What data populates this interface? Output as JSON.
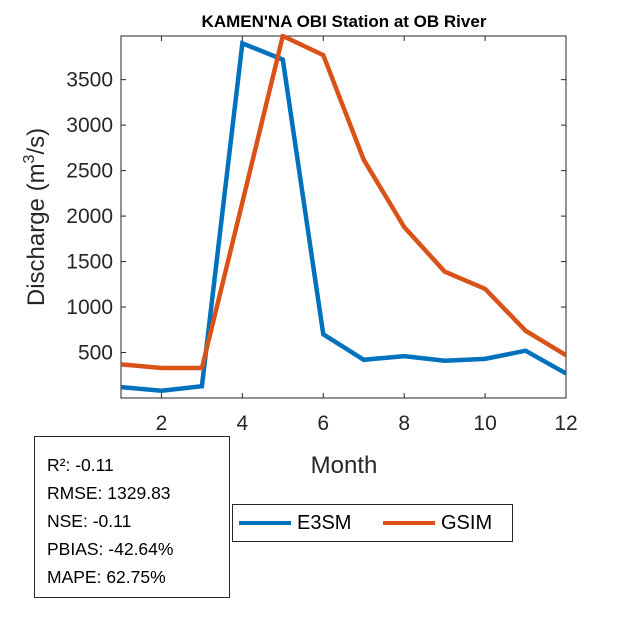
{
  "chart_data": {
    "type": "line",
    "title": "KAMEN'NA OBI  Station at  OB  River",
    "xlabel": "Month",
    "ylabel_main": "Discharge (m",
    "ylabel_sup": "3",
    "ylabel_tail": "/s)",
    "xlim": [
      1,
      12
    ],
    "ylim": [
      0,
      3980
    ],
    "xticks": [
      2,
      4,
      6,
      8,
      10,
      12
    ],
    "yticks": [
      500,
      1000,
      1500,
      2000,
      2500,
      3000,
      3500
    ],
    "x": [
      1,
      2,
      3,
      4,
      5,
      6,
      7,
      8,
      9,
      10,
      11,
      12
    ],
    "series": [
      {
        "name": "E3SM",
        "color": "#0072BD",
        "values": [
          120,
          80,
          130,
          3900,
          3720,
          700,
          420,
          460,
          410,
          430,
          520,
          270
        ]
      },
      {
        "name": "GSIM",
        "color": "#D95319",
        "values": [
          370,
          330,
          330,
          2150,
          3980,
          3770,
          2620,
          1880,
          1390,
          1200,
          740,
          470
        ]
      }
    ],
    "legend_position": "bottom-center"
  },
  "stats": [
    "R²: -0.11",
    "RMSE: 1329.83",
    "NSE: -0.11",
    "PBIAS: -42.64%",
    "MAPE: 62.75%"
  ]
}
